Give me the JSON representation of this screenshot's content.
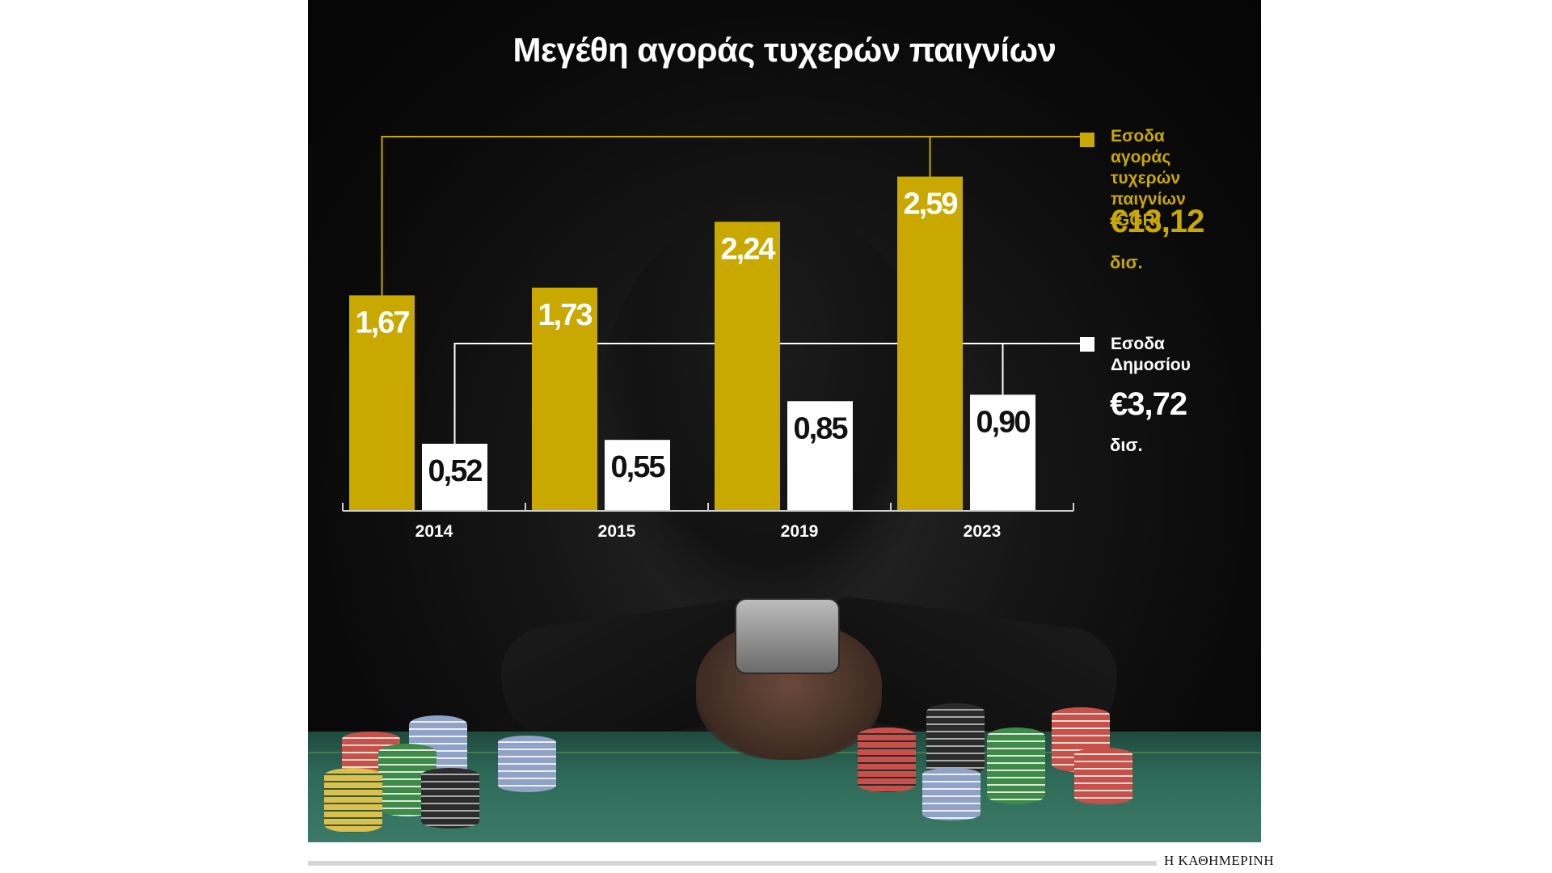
{
  "chart_data": {
    "type": "bar",
    "title": "Μεγέθη αγοράς τυχερών παιγνίων",
    "categories": [
      "2014",
      "2015",
      "2019",
      "2023"
    ],
    "series": [
      {
        "name": "Εσοδα αγοράς τυχερών παιγνίων (GGR)",
        "values": [
          1.67,
          1.73,
          2.24,
          2.59
        ],
        "labels": [
          "1,67",
          "1,73",
          "2,24",
          "2,59"
        ],
        "color": "#c9a800"
      },
      {
        "name": "Εσοδα Δημοσίου",
        "values": [
          0.52,
          0.55,
          0.85,
          0.9
        ],
        "labels": [
          "0,52",
          "0,55",
          "0,85",
          "0,90"
        ],
        "color": "#ffffff"
      }
    ],
    "ylim": [
      0,
      2.9
    ],
    "grid": false,
    "legend_placement": "right"
  },
  "legend": {
    "ggr": {
      "lines": [
        "Εσοδα αγοράς",
        "τυχερών",
        "παιγνίων (GGR)"
      ],
      "total": "€13,12",
      "unit": "δισ.",
      "color": "#c9a800"
    },
    "state": {
      "lines": [
        "Εσοδα",
        "Δημοσίου"
      ],
      "total": "€3,72",
      "unit": "δισ.",
      "color": "#ffffff"
    }
  },
  "colors": {
    "gold": "#c9a800",
    "white": "#ffffff",
    "background": "#0a0a0a",
    "value_text_dark": "#111111"
  },
  "footer": {
    "brand": "Η ΚΑΘΗΜΕΡΙΝΗ"
  }
}
